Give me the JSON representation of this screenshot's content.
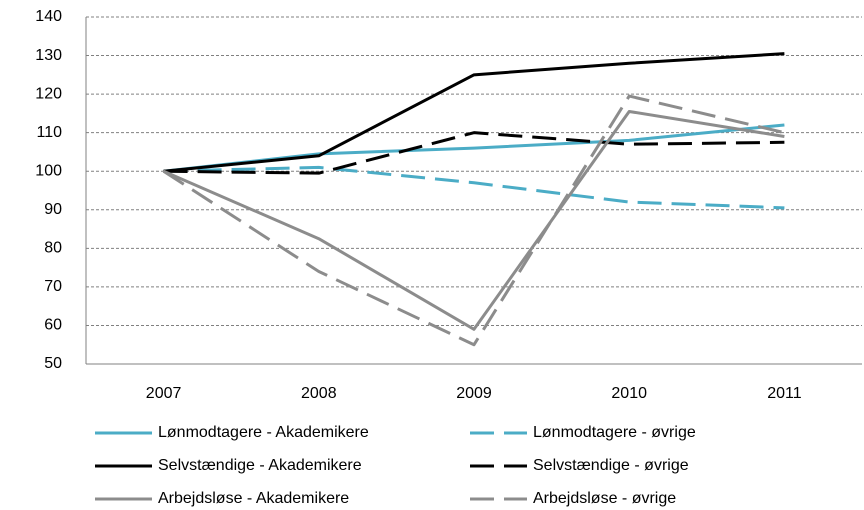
{
  "chart_data": {
    "type": "line",
    "categories": [
      "2007",
      "2008",
      "2009",
      "2010",
      "2011"
    ],
    "series": [
      {
        "name": "Lønmodtagere - Akademikere",
        "color": "#4bacc6",
        "dashed": false,
        "values": [
          100,
          104.5,
          106,
          108,
          112
        ]
      },
      {
        "name": "Lønmodtagere - øvrige",
        "color": "#4bacc6",
        "dashed": true,
        "values": [
          100,
          101,
          97,
          92,
          90.5
        ]
      },
      {
        "name": "Selvstændige - Akademikere",
        "color": "#000000",
        "dashed": false,
        "values": [
          100,
          104,
          125,
          128,
          130.5
        ]
      },
      {
        "name": "Selvstændige - øvrige",
        "color": "#000000",
        "dashed": true,
        "values": [
          100,
          99.5,
          110,
          107,
          107.5
        ]
      },
      {
        "name": "Arbejdsløse - Akademikere",
        "color": "#8c8c8c",
        "dashed": false,
        "values": [
          100,
          82.5,
          59,
          115.5,
          109
        ]
      },
      {
        "name": "Arbejdsløse - øvrige",
        "color": "#8c8c8c",
        "dashed": true,
        "values": [
          100,
          74,
          55,
          119.5,
          110
        ]
      }
    ],
    "ylim": [
      50,
      140
    ],
    "yticks": [
      50,
      60,
      70,
      80,
      90,
      100,
      110,
      120,
      130,
      140
    ],
    "grid": true,
    "legend": "bottom"
  }
}
